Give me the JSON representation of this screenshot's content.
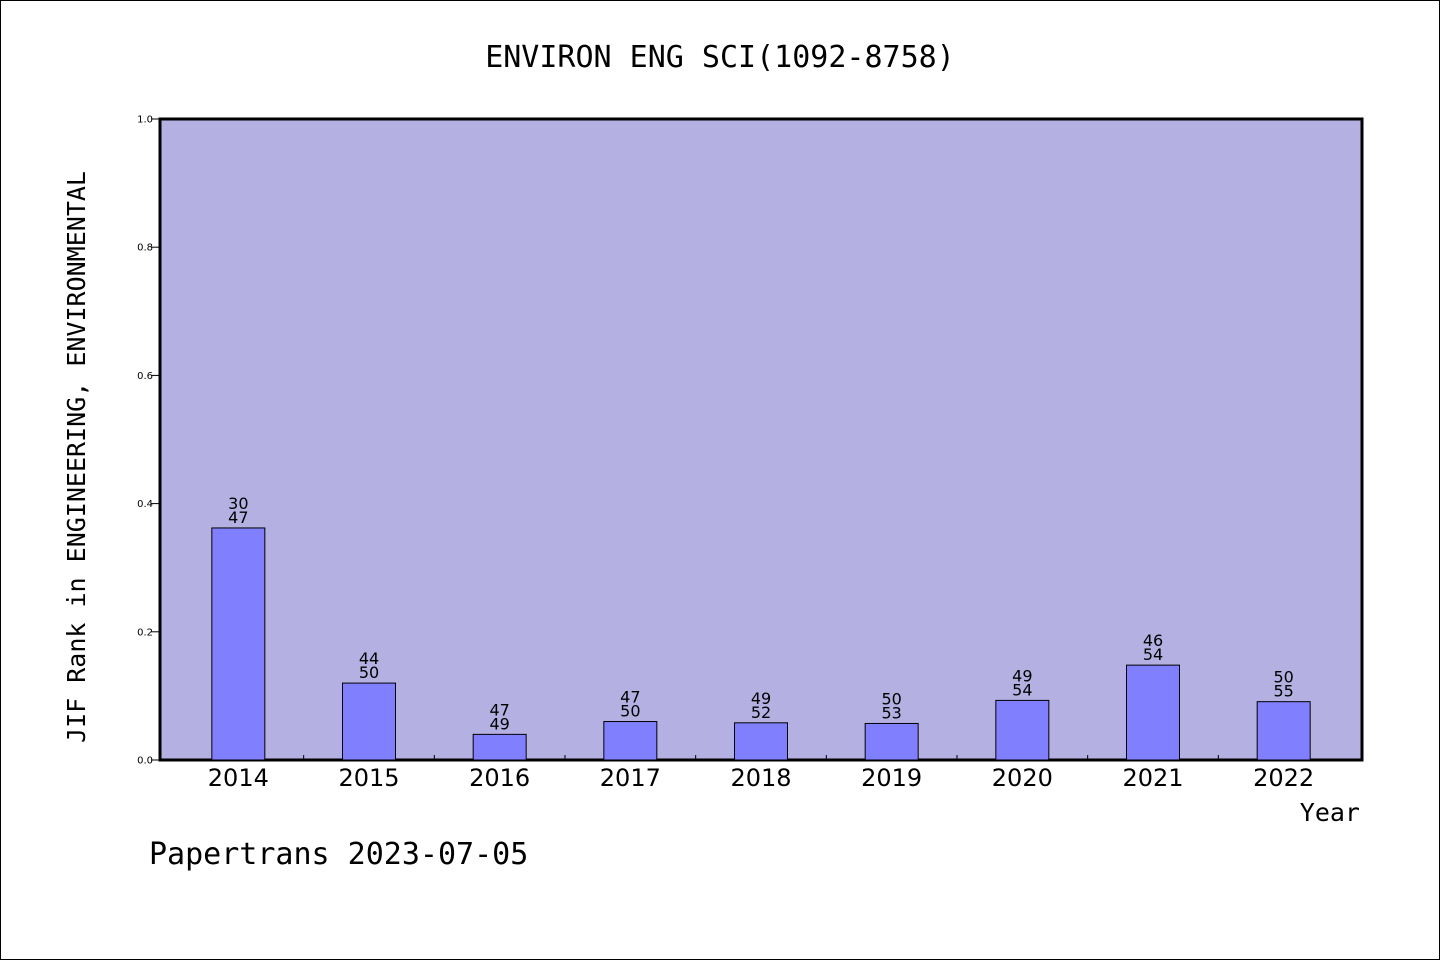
{
  "chart_data": {
    "type": "bar",
    "title": "ENVIRON ENG SCI(1092-8758)",
    "xlabel": "Year",
    "ylabel": "JIF Rank in ENGINEERING, ENVIRONMENTAL",
    "ylim": [
      0,
      1.0
    ],
    "yticks": [
      "0.0",
      "0.2",
      "0.4",
      "0.6",
      "0.8",
      "1.0"
    ],
    "categories": [
      "2014",
      "2015",
      "2016",
      "2017",
      "2018",
      "2019",
      "2020",
      "2021",
      "2022"
    ],
    "values": [
      0.362,
      0.12,
      0.04,
      0.06,
      0.058,
      0.057,
      0.093,
      0.148,
      0.091
    ],
    "rank_labels": [
      {
        "rank": "30",
        "total": "47"
      },
      {
        "rank": "44",
        "total": "50"
      },
      {
        "rank": "47",
        "total": "49"
      },
      {
        "rank": "47",
        "total": "50"
      },
      {
        "rank": "49",
        "total": "52"
      },
      {
        "rank": "50",
        "total": "53"
      },
      {
        "rank": "49",
        "total": "54"
      },
      {
        "rank": "46",
        "total": "54"
      },
      {
        "rank": "50",
        "total": "55"
      }
    ],
    "grid": false,
    "colors": {
      "plot_background": "#b5b0e2",
      "bar_fill": "#8080ff",
      "bar_stroke": "#000000"
    }
  },
  "footer": {
    "text": "Papertrans 2023-07-05"
  }
}
